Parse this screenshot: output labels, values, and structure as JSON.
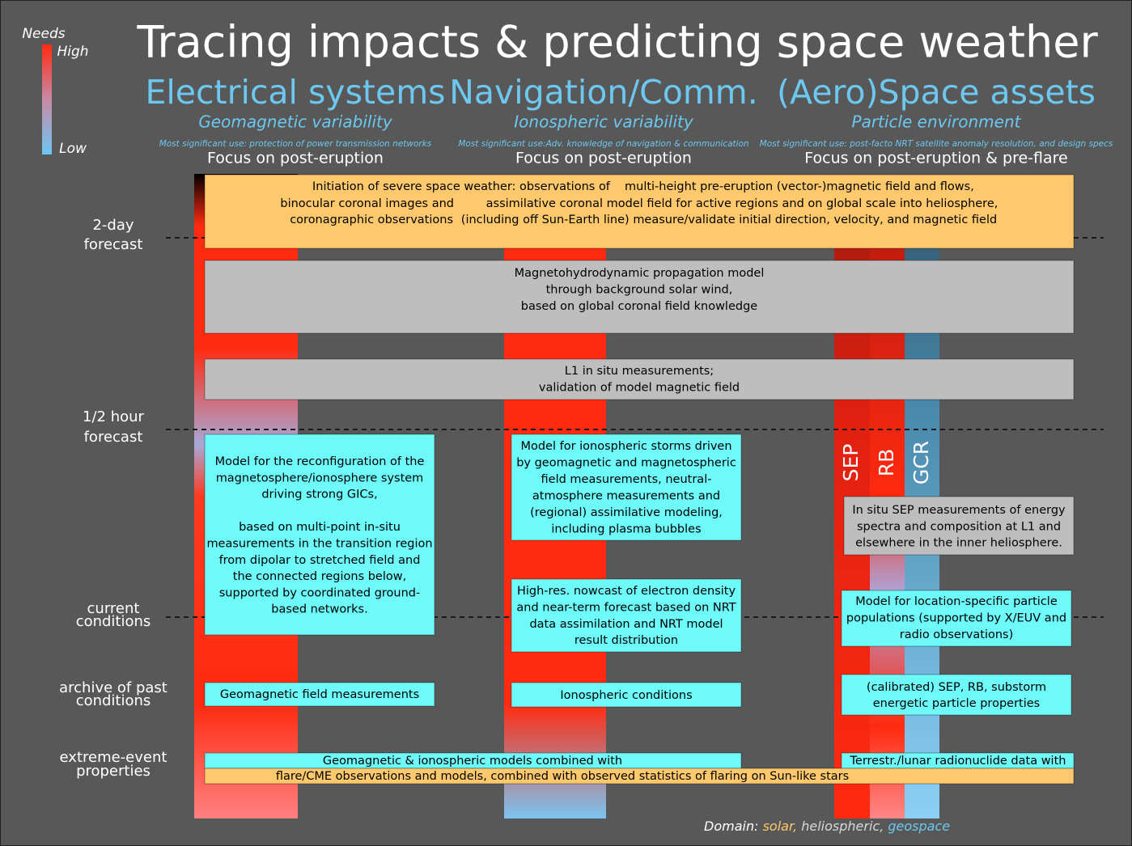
{
  "title": "Tracing impacts & predicting space weather",
  "legend": {
    "title": "Needs",
    "high": "High",
    "low": "Low"
  },
  "columns": [
    {
      "name": "Electrical systems",
      "subtitle": "Geomagnetic variability",
      "use": "Most significant use: protection of power transmission networks",
      "focus": "Focus on post-eruption"
    },
    {
      "name": "Navigation/Comm.",
      "subtitle": "Ionospheric variability",
      "use": "Most significant use:Adv. knowledge of navigation & communication",
      "focus": "Focus on post-eruption"
    },
    {
      "name": "(Aero)Space assets",
      "subtitle": "Particle environment",
      "use": "Most significant use: post-facto NRT satellite anomaly resolution, and design specs",
      "focus": "Focus on post-eruption & pre-flare"
    }
  ],
  "rows": [
    {
      "label": [
        "2-day",
        "forecast"
      ]
    },
    {
      "label": [
        "1/2 hour",
        "forecast"
      ]
    },
    {
      "label": [
        "current",
        "conditions"
      ]
    },
    {
      "label": [
        "archive of past",
        "conditions"
      ]
    },
    {
      "label": [
        "extreme-event",
        "properties"
      ]
    }
  ],
  "initiation": {
    "left": [
      "Initiation of severe space weather: observations of",
      "binocular coronal images and",
      "coronagraphic observations"
    ],
    "right": [
      "multi-height pre-eruption (vector-)magnetic field and flows,",
      "assimilative coronal model field for active regions and on global scale into heliosphere,",
      "(including off Sun-Earth line) measure/validate initial direction, velocity, and magnetic field"
    ]
  },
  "boxes": [
    {
      "lines": [
        "Magnetohydrodynamic propagation model",
        "through background solar wind,",
        "based on global coronal field knowledge"
      ]
    },
    {
      "lines": [
        "L1 in situ measurements;",
        "validation of model magnetic field"
      ]
    },
    {
      "lines": [
        "Model for the reconfiguration of the",
        "magnetosphere/ionosphere system",
        "driving strong GICs,",
        "based on multi-point in-situ",
        "measurements in the transition region",
        "from dipolar to stretched field and",
        "the connected regions below,",
        "supported by coordinated ground-",
        "based networks."
      ]
    },
    {
      "lines": [
        "Model for ionospheric storms driven",
        "by geomagnetic and magnetospheric",
        "field measurements, neutral-",
        "atmosphere measurements and",
        "(regional) assimilative modeling,",
        "including plasma bubbles"
      ]
    },
    {
      "lines": [
        "In situ SEP measurements of energy",
        "spectra and composition at L1 and",
        "elsewhere in the inner heliosphere."
      ]
    },
    {
      "lines": [
        "High-res. nowcast of electron density",
        "and near-term forecast based on NRT",
        "data assimilation and NRT model",
        "result distribution"
      ]
    },
    {
      "lines": [
        "Model for location-specific particle",
        "populations (supported by X/EUV and",
        "radio observations)"
      ]
    },
    {
      "lines": [
        "Geomagnetic field measurements"
      ]
    },
    {
      "lines": [
        "Ionospheric conditions"
      ]
    },
    {
      "lines": [
        "(calibrated) SEP, RB, substorm",
        "energetic particle properties"
      ]
    },
    {
      "lines": [
        "Geomagnetic & ionospheric models combined with"
      ]
    },
    {
      "lines": [
        "Terrestr./lunar radionuclide data with"
      ]
    },
    {
      "lines": [
        "flare/CME observations and models, combined with observed statistics of flaring on Sun-like stars"
      ]
    }
  ],
  "bars": [
    "SEP",
    "RB",
    "GCR"
  ],
  "domain": {
    "label": "Domain:",
    "items": [
      "solar,",
      "heliospheric,",
      "geospace"
    ]
  }
}
